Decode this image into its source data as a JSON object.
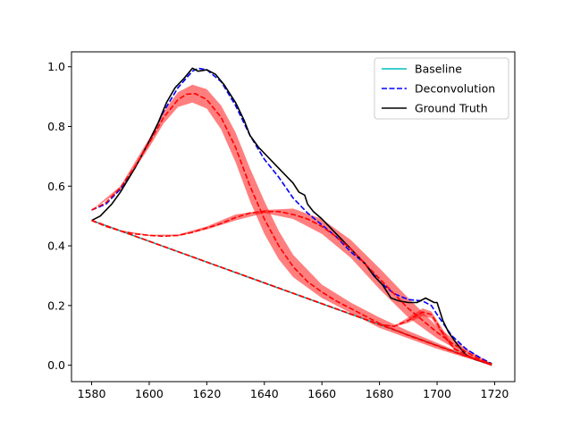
{
  "chart_data": {
    "type": "line",
    "title": "",
    "xlabel": "",
    "ylabel": "",
    "xlim": [
      1573,
      1727
    ],
    "ylim": [
      -0.055,
      1.05
    ],
    "x_ticks": [
      1580,
      1600,
      1620,
      1640,
      1660,
      1680,
      1700,
      1720
    ],
    "y_ticks": [
      0.0,
      0.2,
      0.4,
      0.6,
      0.8,
      1.0
    ],
    "x_tick_labels": [
      "1580",
      "1600",
      "1620",
      "1640",
      "1660",
      "1680",
      "1700",
      "1720"
    ],
    "y_tick_labels": [
      "0.0",
      "0.2",
      "0.4",
      "0.6",
      "0.8",
      "1.0"
    ],
    "grid": false,
    "legend_position": "top-right",
    "legend": [
      {
        "label": "Baseline",
        "color": "#00bfbf",
        "style": "solid"
      },
      {
        "label": "Deconvolution",
        "color": "#0000ff",
        "style": "dashed"
      },
      {
        "label": "Ground Truth",
        "color": "#000000",
        "style": "solid"
      }
    ],
    "series": [
      {
        "name": "Baseline",
        "color": "#00bfbf",
        "style": "solid",
        "points": [
          [
            1580,
            0.485
          ],
          [
            1719,
            0.0
          ]
        ]
      },
      {
        "name": "Deconvolution",
        "color": "#0000ff",
        "style": "dashed",
        "points": [
          [
            1580,
            0.52
          ],
          [
            1585,
            0.54
          ],
          [
            1590,
            0.59
          ],
          [
            1595,
            0.66
          ],
          [
            1600,
            0.75
          ],
          [
            1605,
            0.85
          ],
          [
            1610,
            0.93
          ],
          [
            1615,
            0.985
          ],
          [
            1617,
            0.995
          ],
          [
            1620,
            0.99
          ],
          [
            1625,
            0.95
          ],
          [
            1630,
            0.87
          ],
          [
            1635,
            0.77
          ],
          [
            1640,
            0.69
          ],
          [
            1645,
            0.63
          ],
          [
            1650,
            0.56
          ],
          [
            1655,
            0.51
          ],
          [
            1660,
            0.47
          ],
          [
            1665,
            0.43
          ],
          [
            1670,
            0.38
          ],
          [
            1675,
            0.34
          ],
          [
            1680,
            0.28
          ],
          [
            1685,
            0.24
          ],
          [
            1690,
            0.22
          ],
          [
            1695,
            0.215
          ],
          [
            1698,
            0.2
          ],
          [
            1700,
            0.17
          ],
          [
            1705,
            0.1
          ],
          [
            1710,
            0.055
          ],
          [
            1715,
            0.025
          ],
          [
            1719,
            0.005
          ]
        ]
      },
      {
        "name": "Ground Truth",
        "color": "#000000",
        "style": "solid",
        "points": [
          [
            1580,
            0.485
          ],
          [
            1583,
            0.5
          ],
          [
            1587,
            0.54
          ],
          [
            1590,
            0.58
          ],
          [
            1595,
            0.66
          ],
          [
            1600,
            0.75
          ],
          [
            1603,
            0.81
          ],
          [
            1606,
            0.88
          ],
          [
            1609,
            0.93
          ],
          [
            1612,
            0.96
          ],
          [
            1615,
            0.995
          ],
          [
            1617,
            0.985
          ],
          [
            1620,
            0.99
          ],
          [
            1623,
            0.975
          ],
          [
            1626,
            0.94
          ],
          [
            1630,
            0.88
          ],
          [
            1633,
            0.82
          ],
          [
            1635,
            0.77
          ],
          [
            1638,
            0.73
          ],
          [
            1641,
            0.7
          ],
          [
            1644,
            0.67
          ],
          [
            1647,
            0.64
          ],
          [
            1650,
            0.61
          ],
          [
            1652,
            0.58
          ],
          [
            1654,
            0.57
          ],
          [
            1655,
            0.54
          ],
          [
            1657,
            0.515
          ],
          [
            1660,
            0.49
          ],
          [
            1663,
            0.46
          ],
          [
            1666,
            0.43
          ],
          [
            1669,
            0.4
          ],
          [
            1672,
            0.37
          ],
          [
            1675,
            0.34
          ],
          [
            1678,
            0.3
          ],
          [
            1681,
            0.27
          ],
          [
            1684,
            0.225
          ],
          [
            1687,
            0.215
          ],
          [
            1690,
            0.21
          ],
          [
            1693,
            0.21
          ],
          [
            1696,
            0.225
          ],
          [
            1699,
            0.21
          ],
          [
            1700,
            0.21
          ],
          [
            1702,
            0.15
          ],
          [
            1704,
            0.11
          ],
          [
            1707,
            0.07
          ],
          [
            1710,
            0.035
          ],
          [
            1713,
            0.02
          ],
          [
            1716,
            0.01
          ],
          [
            1719,
            0.005
          ]
        ]
      },
      {
        "name": "",
        "color": "#ff0000",
        "style": "dashed",
        "points": [
          [
            1580,
            0.52
          ],
          [
            1585,
            0.545
          ],
          [
            1590,
            0.595
          ],
          [
            1595,
            0.665
          ],
          [
            1600,
            0.745
          ],
          [
            1605,
            0.83
          ],
          [
            1610,
            0.89
          ],
          [
            1613,
            0.908
          ],
          [
            1616,
            0.91
          ],
          [
            1620,
            0.89
          ],
          [
            1625,
            0.83
          ],
          [
            1630,
            0.73
          ],
          [
            1635,
            0.6
          ],
          [
            1640,
            0.49
          ],
          [
            1645,
            0.4
          ],
          [
            1650,
            0.33
          ],
          [
            1655,
            0.28
          ],
          [
            1660,
            0.245
          ],
          [
            1665,
            0.215
          ],
          [
            1670,
            0.19
          ],
          [
            1675,
            0.165
          ],
          [
            1680,
            0.14
          ],
          [
            1690,
            0.1
          ],
          [
            1700,
            0.065
          ],
          [
            1710,
            0.03
          ],
          [
            1719,
            0.003
          ]
        ]
      },
      {
        "name": "",
        "color": "#ff0000",
        "style": "dashed",
        "points": [
          [
            1580,
            0.485
          ],
          [
            1585,
            0.465
          ],
          [
            1590,
            0.45
          ],
          [
            1595,
            0.44
          ],
          [
            1600,
            0.435
          ],
          [
            1605,
            0.432
          ],
          [
            1610,
            0.435
          ],
          [
            1615,
            0.445
          ],
          [
            1620,
            0.46
          ],
          [
            1625,
            0.475
          ],
          [
            1630,
            0.495
          ],
          [
            1635,
            0.51
          ],
          [
            1640,
            0.515
          ],
          [
            1645,
            0.515
          ],
          [
            1650,
            0.505
          ],
          [
            1655,
            0.49
          ],
          [
            1660,
            0.465
          ],
          [
            1665,
            0.43
          ],
          [
            1670,
            0.39
          ],
          [
            1675,
            0.34
          ],
          [
            1680,
            0.29
          ],
          [
            1685,
            0.24
          ],
          [
            1690,
            0.19
          ],
          [
            1695,
            0.15
          ],
          [
            1700,
            0.11
          ],
          [
            1705,
            0.075
          ],
          [
            1710,
            0.045
          ],
          [
            1715,
            0.02
          ],
          [
            1719,
            0.003
          ]
        ]
      },
      {
        "name": "",
        "color": "#ff0000",
        "style": "dashed",
        "points": [
          [
            1580,
            0.485
          ],
          [
            1680,
            0.137
          ],
          [
            1685,
            0.13
          ],
          [
            1690,
            0.15
          ],
          [
            1695,
            0.178
          ],
          [
            1698,
            0.17
          ],
          [
            1700,
            0.14
          ],
          [
            1703,
            0.09
          ],
          [
            1706,
            0.055
          ],
          [
            1710,
            0.035
          ],
          [
            1715,
            0.015
          ],
          [
            1719,
            0.0
          ]
        ]
      },
      {
        "name": "",
        "color": "#ff0000",
        "style": "dashed",
        "points": [
          [
            1580,
            0.485
          ],
          [
            1719,
            0.0
          ]
        ]
      }
    ],
    "bands": [
      {
        "color": "#ff0000",
        "alpha": 0.5,
        "upper": [
          [
            1580,
            0.52
          ],
          [
            1590,
            0.6
          ],
          [
            1600,
            0.76
          ],
          [
            1605,
            0.85
          ],
          [
            1610,
            0.915
          ],
          [
            1615,
            0.94
          ],
          [
            1620,
            0.925
          ],
          [
            1625,
            0.87
          ],
          [
            1630,
            0.78
          ],
          [
            1635,
            0.66
          ],
          [
            1640,
            0.55
          ],
          [
            1645,
            0.45
          ],
          [
            1650,
            0.37
          ],
          [
            1660,
            0.27
          ],
          [
            1670,
            0.21
          ],
          [
            1680,
            0.16
          ],
          [
            1690,
            0.115
          ],
          [
            1700,
            0.075
          ],
          [
            1710,
            0.035
          ],
          [
            1719,
            0.005
          ]
        ],
        "lower": [
          [
            1580,
            0.52
          ],
          [
            1590,
            0.585
          ],
          [
            1600,
            0.73
          ],
          [
            1605,
            0.81
          ],
          [
            1610,
            0.865
          ],
          [
            1615,
            0.88
          ],
          [
            1620,
            0.86
          ],
          [
            1625,
            0.79
          ],
          [
            1630,
            0.68
          ],
          [
            1635,
            0.55
          ],
          [
            1640,
            0.44
          ],
          [
            1645,
            0.355
          ],
          [
            1650,
            0.295
          ],
          [
            1660,
            0.225
          ],
          [
            1670,
            0.175
          ],
          [
            1680,
            0.125
          ],
          [
            1690,
            0.09
          ],
          [
            1700,
            0.055
          ],
          [
            1710,
            0.025
          ],
          [
            1719,
            0.0
          ]
        ]
      },
      {
        "color": "#ff0000",
        "alpha": 0.5,
        "upper": [
          [
            1580,
            0.485
          ],
          [
            1590,
            0.452
          ],
          [
            1600,
            0.437
          ],
          [
            1610,
            0.438
          ],
          [
            1620,
            0.465
          ],
          [
            1630,
            0.505
          ],
          [
            1640,
            0.52
          ],
          [
            1650,
            0.525
          ],
          [
            1660,
            0.49
          ],
          [
            1670,
            0.42
          ],
          [
            1680,
            0.325
          ],
          [
            1690,
            0.225
          ],
          [
            1700,
            0.13
          ],
          [
            1710,
            0.055
          ],
          [
            1719,
            0.005
          ]
        ],
        "lower": [
          [
            1580,
            0.485
          ],
          [
            1590,
            0.448
          ],
          [
            1600,
            0.433
          ],
          [
            1610,
            0.432
          ],
          [
            1620,
            0.455
          ],
          [
            1630,
            0.485
          ],
          [
            1640,
            0.51
          ],
          [
            1650,
            0.49
          ],
          [
            1660,
            0.44
          ],
          [
            1670,
            0.36
          ],
          [
            1680,
            0.255
          ],
          [
            1690,
            0.16
          ],
          [
            1700,
            0.09
          ],
          [
            1710,
            0.035
          ],
          [
            1719,
            0.0
          ]
        ]
      },
      {
        "color": "#ff0000",
        "alpha": 0.5,
        "upper": [
          [
            1680,
            0.137
          ],
          [
            1685,
            0.132
          ],
          [
            1690,
            0.16
          ],
          [
            1695,
            0.19
          ],
          [
            1698,
            0.18
          ],
          [
            1702,
            0.12
          ],
          [
            1706,
            0.06
          ],
          [
            1710,
            0.035
          ]
        ],
        "lower": [
          [
            1680,
            0.137
          ],
          [
            1685,
            0.128
          ],
          [
            1690,
            0.142
          ],
          [
            1695,
            0.165
          ],
          [
            1698,
            0.158
          ],
          [
            1702,
            0.1
          ],
          [
            1706,
            0.05
          ],
          [
            1710,
            0.035
          ]
        ]
      }
    ]
  }
}
